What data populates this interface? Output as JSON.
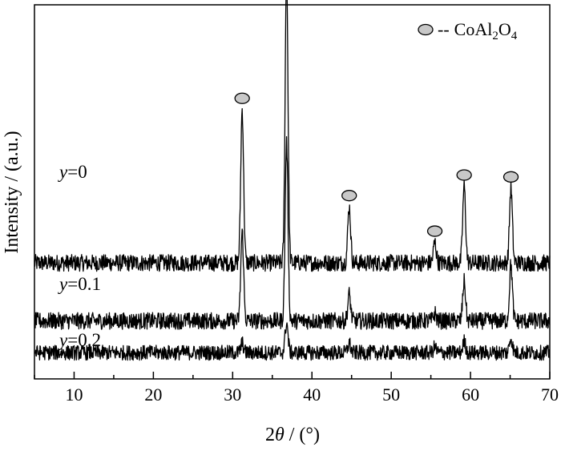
{
  "chart_data": {
    "type": "line",
    "xlabel_prefix": "2",
    "xlabel_symbol": "θ",
    "xlabel_suffix": " / (°)",
    "ylabel": "Intensity / (a.u.)",
    "xlim": [
      5,
      70
    ],
    "xticks": [
      10,
      20,
      30,
      40,
      50,
      60,
      70
    ],
    "grid": false,
    "legend": {
      "placement": "top-right",
      "marker": "gray-ellipse",
      "dash": "--",
      "text_main": "CoAl",
      "sub1": "2",
      "text_mid": "O",
      "sub2": "4"
    },
    "marker_color": "#c8c8c8",
    "peaks_marked": [
      31.2,
      36.8,
      44.7,
      55.5,
      59.2,
      65.1
    ],
    "series": [
      {
        "name_var": "y",
        "name_val": "=0",
        "baseline": 0.62,
        "noise": 0.045,
        "peaks": [
          {
            "x": 31.2,
            "h": 0.82
          },
          {
            "x": 36.8,
            "h": 1.55
          },
          {
            "x": 44.7,
            "h": 0.3
          },
          {
            "x": 55.5,
            "h": 0.11
          },
          {
            "x": 59.2,
            "h": 0.41
          },
          {
            "x": 65.1,
            "h": 0.4
          }
        ]
      },
      {
        "name_var": "y",
        "name_val": "=0.1",
        "baseline": 0.31,
        "noise": 0.045,
        "peaks": [
          {
            "x": 31.2,
            "h": 0.47
          },
          {
            "x": 36.8,
            "h": 0.95
          },
          {
            "x": 44.7,
            "h": 0.14
          },
          {
            "x": 55.5,
            "h": 0.04
          },
          {
            "x": 59.2,
            "h": 0.21
          },
          {
            "x": 65.1,
            "h": 0.3
          }
        ]
      },
      {
        "name_var": "y",
        "name_val": "=0.2",
        "baseline": 0.14,
        "noise": 0.04,
        "peaks": [
          {
            "x": 31.2,
            "h": 0.05
          },
          {
            "x": 36.8,
            "h": 0.16
          },
          {
            "x": 44.7,
            "h": 0.05
          },
          {
            "x": 55.5,
            "h": 0.03
          },
          {
            "x": 59.2,
            "h": 0.06
          },
          {
            "x": 65.1,
            "h": 0.08
          }
        ]
      }
    ]
  }
}
